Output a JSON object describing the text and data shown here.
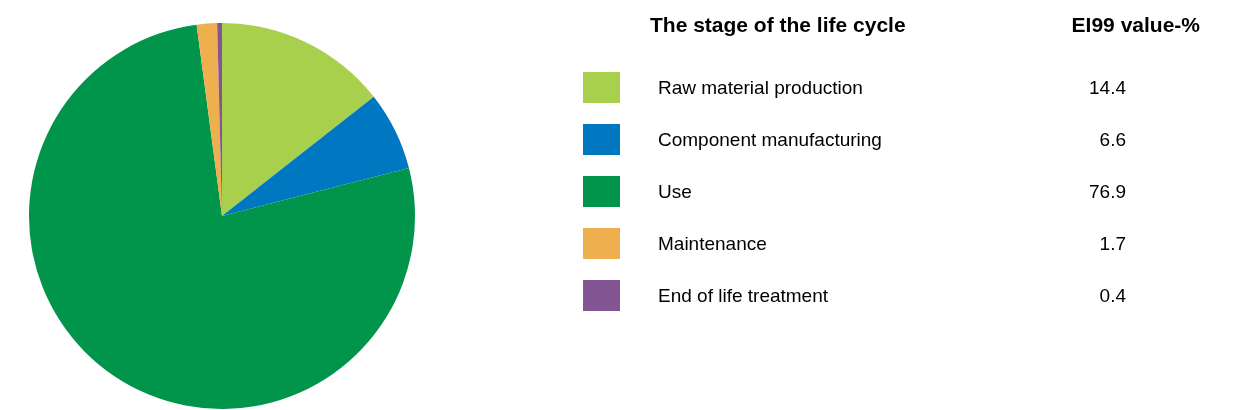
{
  "chart_data": {
    "type": "pie",
    "legend_title": "The stage of the life cycle",
    "annotations": [
      "EI99 value-%"
    ],
    "categories": [
      "Raw material production",
      "Component manufacturing",
      "Use",
      "Maintenance",
      "End of life treatment"
    ],
    "values": [
      14.4,
      6.6,
      76.9,
      1.7,
      0.4
    ],
    "colors": [
      "#a9d04d",
      "#0077c1",
      "#00954b",
      "#eeaf4e",
      "#835592"
    ],
    "data_labels": true,
    "legend": "right"
  }
}
